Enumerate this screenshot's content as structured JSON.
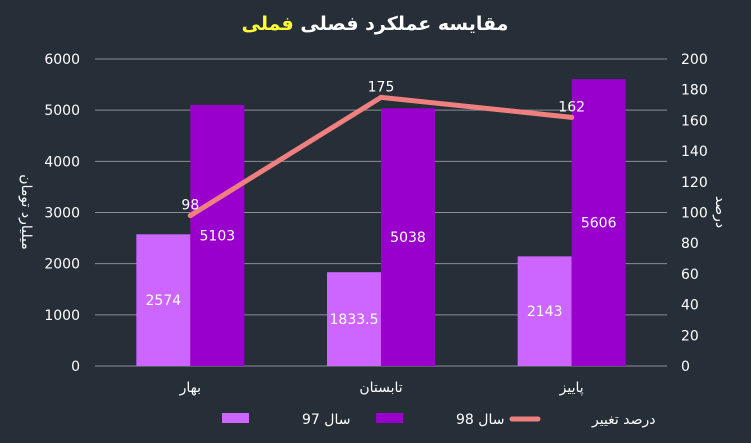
{
  "chart_data": {
    "type": "bar",
    "title": "مقایسه عملکرد فصلی",
    "title_highlight": "فملی",
    "categories": [
      "بهار",
      "تابستان",
      "پاییز"
    ],
    "series": [
      {
        "name": "سال 97",
        "type": "bar",
        "axis": "left",
        "color": "#cc66ff",
        "values": [
          2574,
          1833.5,
          2143
        ],
        "labels": [
          "2574",
          "1833.5",
          "2143"
        ]
      },
      {
        "name": "سال 98",
        "type": "bar",
        "axis": "left",
        "color": "#9900cc",
        "values": [
          5103,
          5038,
          5606
        ],
        "labels": [
          "5103",
          "5038",
          "5606"
        ]
      },
      {
        "name": "درصد تغییر",
        "type": "line",
        "axis": "right",
        "color": "#f08080",
        "values": [
          98,
          175,
          162
        ],
        "labels": [
          "98",
          "175",
          "162"
        ]
      }
    ],
    "ylabel": "میلیارد تومان",
    "y2label": "درصد",
    "ylim": [
      0,
      6000
    ],
    "y2lim": [
      0,
      200
    ],
    "yticks": [
      "0",
      "1000",
      "2000",
      "3000",
      "4000",
      "5000",
      "6000"
    ],
    "y2ticks": [
      "0",
      "20",
      "40",
      "60",
      "80",
      "100",
      "120",
      "140",
      "160",
      "180",
      "200"
    ],
    "grid": true,
    "legend_position": "bottom",
    "background": "#262e38",
    "grid_color": "#8a8f96"
  }
}
